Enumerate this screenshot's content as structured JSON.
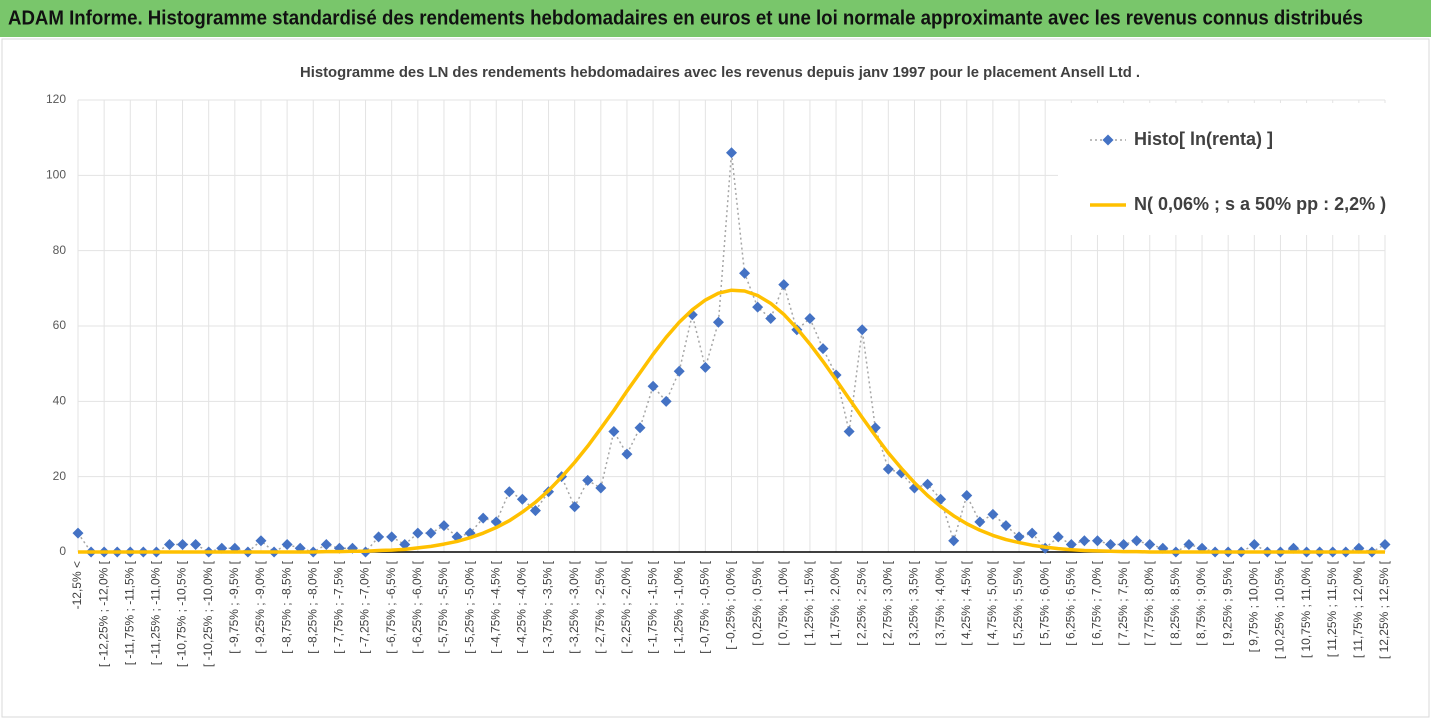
{
  "header": {
    "title": "ADAM Informe. Histogramme standardisé des rendements hebdomadaires en euros et une loi normale approximante avec les revenus connus distribués"
  },
  "chart_data": {
    "type": "line",
    "title": "Histogramme des LN des rendements hebdomadaires avec les revenus depuis janv 1997 pour le placement Ansell Ltd .",
    "categories": [
      "-12,5% <",
      null,
      "[ -12,25% ; -12,0% [",
      null,
      "[ -11,75% ; -11,5% [",
      null,
      "[ -11,25% ; -11,0% [",
      null,
      "[ -10,75% ; -10,5% [",
      null,
      "[ -10,25% ; -10,0% [",
      null,
      "[ -9,75% ; -9,5% [",
      null,
      "[ -9,25% ; -9,0% [",
      null,
      "[ -8,75% ; -8,5% [",
      null,
      "[ -8,25% ; -8,0% [",
      null,
      "[ -7,75% ; -7,5% [",
      null,
      "[ -7,25% ; -7,0% [",
      null,
      "[ -6,75% ; -6,5% [",
      null,
      "[ -6,25% ; -6,0% [",
      null,
      "[ -5,75% ; -5,5% [",
      null,
      "[ -5,25% ; -5,0% [",
      null,
      "[ -4,75% ; -4,5% [",
      null,
      "[ -4,25% ; -4,0% [",
      null,
      "[ -3,75% ; -3,5% [",
      null,
      "[ -3,25% ; -3,0% [",
      null,
      "[ -2,75% ; -2,5% [",
      null,
      "[ -2,25% ; -2,0% [",
      null,
      "[ -1,75% ; -1,5% [",
      null,
      "[ -1,25% ; -1,0% [",
      null,
      "[ -0,75% ; -0,5% [",
      null,
      "[ -0,25% ; 0,0% [",
      null,
      "[ 0,25% ; 0,5% [",
      null,
      "[ 0,75% ; 1,0% [",
      null,
      "[ 1,25% ; 1,5% [",
      null,
      "[ 1,75% ; 2,0% [",
      null,
      "[ 2,25% ; 2,5% [",
      null,
      "[ 2,75% ; 3,0% [",
      null,
      "[ 3,25% ; 3,5% [",
      null,
      "[ 3,75% ; 4,0% [",
      null,
      "[ 4,25% ; 4,5% [",
      null,
      "[ 4,75% ; 5,0% [",
      null,
      "[ 5,25% ; 5,5% [",
      null,
      "[ 5,75% ; 6,0% [",
      null,
      "[ 6,25% ; 6,5% [",
      null,
      "[ 6,75% ; 7,0% [",
      null,
      "[ 7,25% ; 7,5% [",
      null,
      "[ 7,75% ; 8,0% [",
      null,
      "[ 8,25% ; 8,5% [",
      null,
      "[ 8,75% ; 9,0% [",
      null,
      "[ 9,25% ; 9,5% [",
      null,
      "[ 9,75% ; 10,0% [",
      null,
      "[ 10,25% ; 10,5% [",
      null,
      "[ 10,75% ; 11,0% [",
      null,
      "[ 11,25% ; 11,5% [",
      null,
      "[ 11,75% ; 12,0% [",
      null,
      "[ 12,25% ; 12,5% ["
    ],
    "series": [
      {
        "name": "Histo[ ln(renta) ]",
        "color": "#4472c4",
        "line_color": "#a6a6a6",
        "line_style": "dotted",
        "marker": "diamond",
        "values": [
          5,
          0,
          0,
          0,
          0,
          0,
          0,
          2,
          2,
          2,
          0,
          1,
          1,
          0,
          3,
          0,
          2,
          1,
          0,
          2,
          1,
          1,
          0,
          4,
          4,
          2,
          5,
          5,
          7,
          4,
          5,
          9,
          8,
          16,
          14,
          11,
          16,
          20,
          12,
          19,
          17,
          32,
          26,
          33,
          44,
          40,
          48,
          63,
          49,
          61,
          106,
          74,
          65,
          62,
          71,
          59,
          62,
          54,
          47,
          32,
          59,
          33,
          22,
          21,
          17,
          18,
          14,
          3,
          15,
          8,
          10,
          7,
          4,
          5,
          1,
          4,
          2,
          3,
          3,
          2,
          2,
          3,
          2,
          1,
          0,
          2,
          1,
          0,
          0,
          0,
          2,
          0,
          0,
          1,
          0,
          0,
          0,
          0,
          1,
          0,
          2
        ]
      },
      {
        "name": "N( 0,06% ; s a 50% pp : 2,2% )",
        "color": "#ffc000",
        "line_style": "solid",
        "marker": "none",
        "values": [
          0,
          0,
          0,
          0,
          0,
          0,
          0,
          0,
          0,
          0,
          0,
          0,
          0,
          0,
          0,
          0,
          0,
          0,
          0,
          0.1,
          0.1,
          0.2,
          0.2,
          0.4,
          0.5,
          0.7,
          1.1,
          1.5,
          2.1,
          2.8,
          3.8,
          5.0,
          6.5,
          8.3,
          10.6,
          13.2,
          16.3,
          19.9,
          23.8,
          28.1,
          32.8,
          37.6,
          42.7,
          47.6,
          52.5,
          57.0,
          61.0,
          64.3,
          66.9,
          68.7,
          69.5,
          69.3,
          68.1,
          66.0,
          63.1,
          59.4,
          55.2,
          50.6,
          45.7,
          40.7,
          35.7,
          30.9,
          26.3,
          22.2,
          18.4,
          15.0,
          12.1,
          9.6,
          7.5,
          5.8,
          4.4,
          3.3,
          2.5,
          1.8,
          1.3,
          0.9,
          0.6,
          0.4,
          0.3,
          0.2,
          0.1,
          0.1,
          0,
          0,
          0,
          0,
          0,
          0,
          0,
          0,
          0,
          0,
          0,
          0,
          0,
          0,
          0,
          0,
          0,
          0,
          0
        ]
      }
    ],
    "ylim": [
      0,
      120
    ],
    "yticks": [
      0,
      20,
      40,
      60,
      80,
      100,
      120
    ],
    "grid": true,
    "legend": "top-right"
  }
}
